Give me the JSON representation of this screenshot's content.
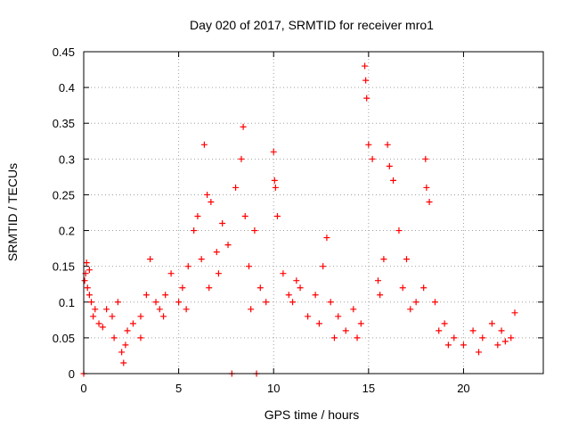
{
  "chart_data": {
    "type": "scatter",
    "title": "Day 020 of 2017, SRMTID for receiver mro1",
    "xlabel": "GPS time / hours",
    "ylabel": "SRMTID / TECUs",
    "xlim": [
      0,
      24.2
    ],
    "ylim": [
      0,
      0.45
    ],
    "xticks": [
      0,
      5,
      10,
      15,
      20
    ],
    "xtick_labels": [
      "0",
      "5",
      "10",
      "15",
      "20"
    ],
    "yticks": [
      0,
      0.05,
      0.1,
      0.15,
      0.2,
      0.25,
      0.3,
      0.35,
      0.4,
      0.45
    ],
    "ytick_labels": [
      "0",
      "0.05",
      "0.1",
      "0.15",
      "0.2",
      "0.25",
      "0.3",
      "0.35",
      "0.4",
      "0.45"
    ],
    "grid": true,
    "marker": "plus",
    "marker_color": "#ff0000",
    "series": [
      {
        "name": "SRMTID",
        "color": "#ff0000",
        "x": [
          0.05,
          0.1,
          0.15,
          0.2,
          0.3,
          0.4,
          0.5,
          0.6,
          0.8,
          1.0,
          1.2,
          1.5,
          1.8,
          2.0,
          2.1,
          2.3,
          2.6,
          3.0,
          3.3,
          3.5,
          3.8,
          4.0,
          4.3,
          4.6,
          5.0,
          5.2,
          5.5,
          5.8,
          6.0,
          6.2,
          6.35,
          6.5,
          6.7,
          7.0,
          7.3,
          7.6,
          8.0,
          8.3,
          8.4,
          8.5,
          8.7,
          9.0,
          9.3,
          9.6,
          10.0,
          10.05,
          10.1,
          10.2,
          10.5,
          10.8,
          11.0,
          11.4,
          11.8,
          12.2,
          12.6,
          12.8,
          13.0,
          13.4,
          13.8,
          14.2,
          14.6,
          14.8,
          14.85,
          14.9,
          15.0,
          15.2,
          15.5,
          15.8,
          16.0,
          16.1,
          16.3,
          16.6,
          17.0,
          17.5,
          17.9,
          18.0,
          18.05,
          18.2,
          18.5,
          19.0,
          19.5,
          20.0,
          20.5,
          21.0,
          21.5,
          22.0,
          22.5,
          22.7,
          0.0,
          7.8,
          9.1,
          2.2,
          3.0,
          4.2,
          6.6,
          8.8,
          11.2,
          13.2,
          15.6,
          17.2,
          19.2,
          20.8,
          21.8,
          0.3,
          1.6,
          5.4,
          7.1,
          12.4,
          14.4,
          16.8,
          18.7,
          22.2
        ],
        "y": [
          0.13,
          0.14,
          0.155,
          0.12,
          0.145,
          0.1,
          0.08,
          0.09,
          0.07,
          0.065,
          0.09,
          0.08,
          0.1,
          0.03,
          0.015,
          0.06,
          0.07,
          0.08,
          0.11,
          0.16,
          0.1,
          0.09,
          0.11,
          0.14,
          0.1,
          0.12,
          0.15,
          0.2,
          0.22,
          0.16,
          0.32,
          0.25,
          0.24,
          0.17,
          0.21,
          0.18,
          0.26,
          0.3,
          0.345,
          0.22,
          0.15,
          0.2,
          0.12,
          0.1,
          0.31,
          0.27,
          0.26,
          0.22,
          0.14,
          0.11,
          0.1,
          0.12,
          0.08,
          0.11,
          0.15,
          0.19,
          0.1,
          0.08,
          0.06,
          0.09,
          0.07,
          0.43,
          0.41,
          0.385,
          0.32,
          0.3,
          0.13,
          0.16,
          0.32,
          0.29,
          0.27,
          0.2,
          0.16,
          0.1,
          0.12,
          0.3,
          0.26,
          0.24,
          0.1,
          0.07,
          0.05,
          0.04,
          0.06,
          0.05,
          0.07,
          0.06,
          0.05,
          0.085,
          0.0,
          0.0,
          0.0,
          0.04,
          0.05,
          0.08,
          0.12,
          0.09,
          0.13,
          0.05,
          0.11,
          0.09,
          0.04,
          0.03,
          0.04,
          0.11,
          0.05,
          0.09,
          0.14,
          0.07,
          0.05,
          0.12,
          0.06,
          0.045
        ]
      }
    ]
  }
}
